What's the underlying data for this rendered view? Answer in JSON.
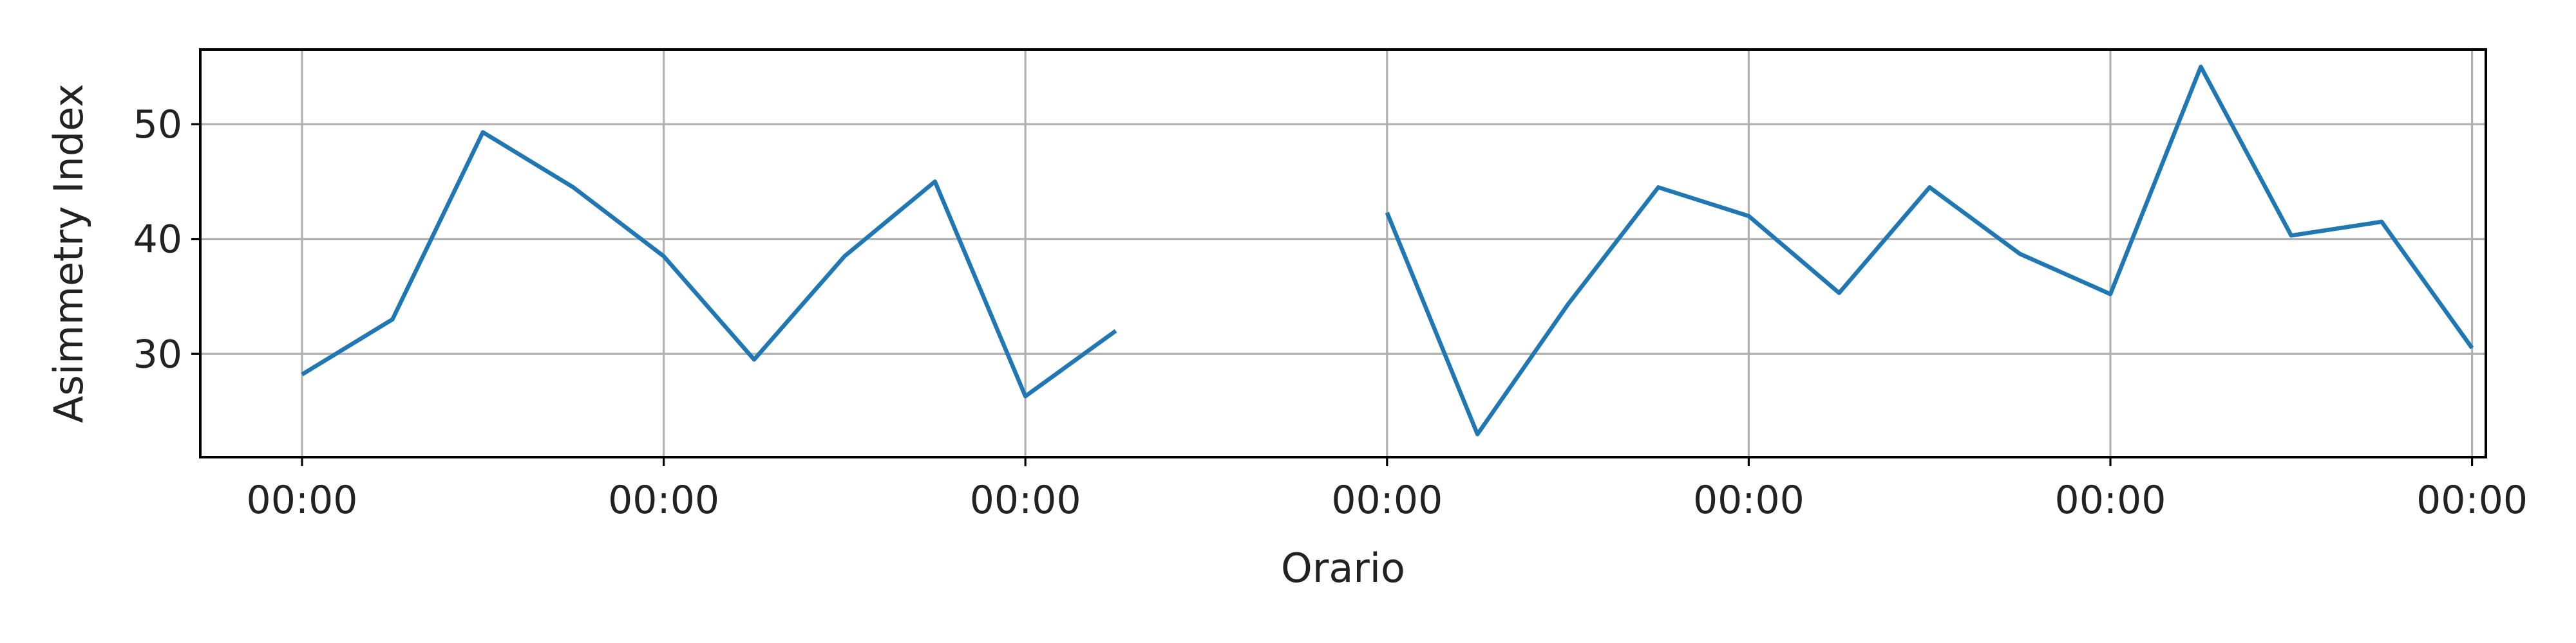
{
  "chart_data": {
    "type": "line",
    "title": "",
    "xlabel": "Orario",
    "ylabel": "Asimmetry Index",
    "x_tick_labels": [
      "00:00",
      "00:00",
      "00:00",
      "00:00",
      "00:00",
      "00:00",
      "00:00"
    ],
    "y_ticks": [
      30,
      40,
      50
    ],
    "ylim": [
      21,
      56.5
    ],
    "grid": true,
    "legend": "none",
    "line_color": "#1f77b4",
    "series": [
      {
        "values": [
          28.2,
          33.0,
          49.3,
          44.5,
          38.5,
          29.5,
          38.5,
          45.0,
          26.3,
          32.0,
          null,
          null,
          42.3,
          23.0,
          34.3,
          44.5,
          42.0,
          35.3,
          44.5,
          38.7,
          35.2,
          55.0,
          40.3,
          41.5,
          30.5
        ]
      }
    ]
  }
}
